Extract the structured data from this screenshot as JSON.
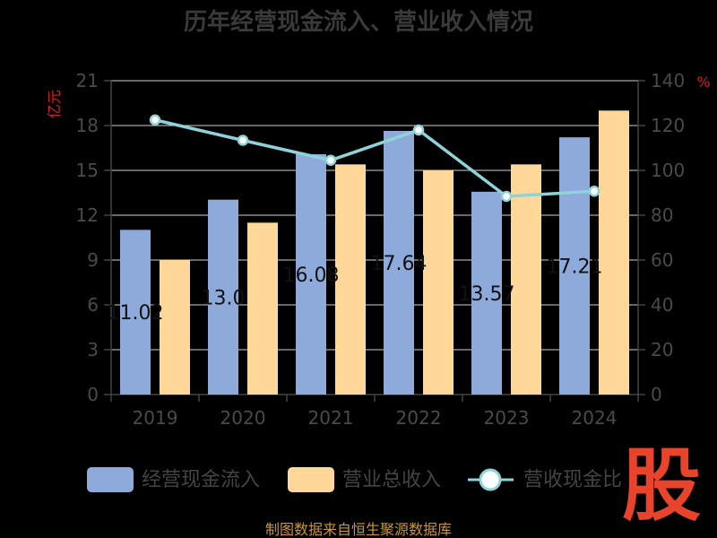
{
  "chart_data": {
    "type": "bar",
    "title": "历年经营现金流入、营业收入情况",
    "categories": [
      "2019",
      "2020",
      "2021",
      "2022",
      "2023",
      "2024"
    ],
    "series": [
      {
        "name": "经营现金流入",
        "kind": "bar",
        "axis": "left",
        "color": "#8eaadb",
        "values": [
          11.02,
          13.04,
          16.08,
          17.64,
          13.57,
          17.21
        ],
        "labels": [
          "11.02",
          "13.0",
          "16.08",
          "17.64",
          "13.57",
          "17.21"
        ]
      },
      {
        "name": "营业总收入",
        "kind": "bar",
        "axis": "left",
        "color": "#ffd899",
        "values": [
          9.0,
          11.5,
          15.4,
          15.0,
          15.4,
          19.0
        ]
      },
      {
        "name": "营收现金比",
        "kind": "line",
        "axis": "right",
        "color": "#8fd3d8",
        "values": [
          122.5,
          113.4,
          104.5,
          118.0,
          88.4,
          90.7
        ]
      }
    ],
    "yleft": {
      "label": "亿元",
      "ylim": [
        0,
        21
      ],
      "ticks": [
        "0",
        "3",
        "6",
        "9",
        "12",
        "15",
        "18",
        "21"
      ]
    },
    "yright": {
      "label": "%",
      "ylim": [
        0,
        140
      ],
      "ticks": [
        "0",
        "20",
        "40",
        "60",
        "80",
        "100",
        "120",
        "140"
      ]
    },
    "grid": true,
    "legend_position": "bottom"
  },
  "footer": "制图数据来自恒生聚源数据库",
  "logo_text": "股",
  "colors": {
    "axis": "#444444",
    "grid": "#cfcfcf",
    "unit": "#d42020"
  }
}
